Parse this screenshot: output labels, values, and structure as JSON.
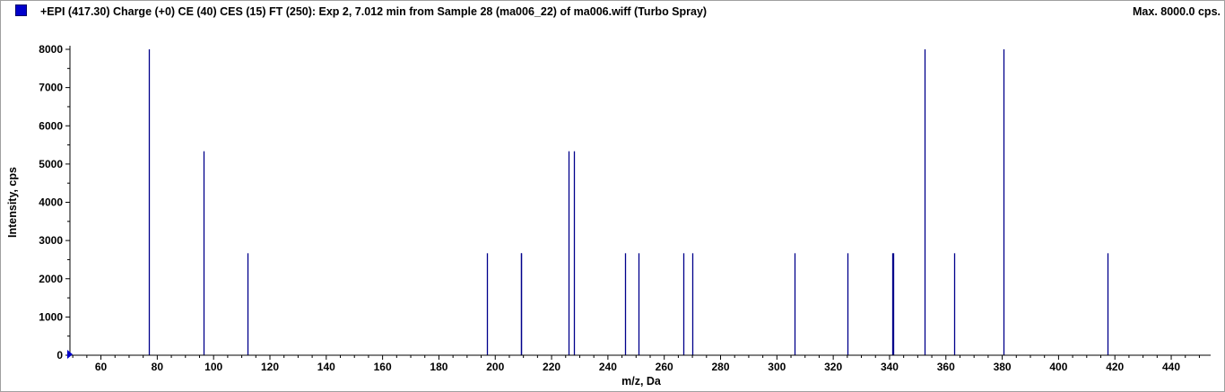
{
  "header": {
    "title": "+EPI (417.30) Charge (+0) CE (40) CES (15) FT (250): Exp 2, 7.012 min from Sample 28 (ma006_22) of ma006.wiff (Turbo Spray)",
    "max_label": "Max. 8000.0 cps."
  },
  "colors": {
    "series": "#00008b",
    "legend_swatch": "#0000cc",
    "axis": "#000000"
  },
  "chart_data": {
    "type": "bar",
    "title": "+EPI (417.30) Charge (+0) CE (40) CES (15) FT (250): Exp 2, 7.012 min from Sample 28 (ma006_22) of ma006.wiff (Turbo Spray)",
    "xlabel": "m/z, Da",
    "ylabel": "Intensity, cps",
    "xlim": [
      49,
      454
    ],
    "ylim": [
      0,
      8000
    ],
    "xticks": [
      60,
      80,
      100,
      120,
      140,
      160,
      180,
      200,
      220,
      240,
      260,
      280,
      300,
      320,
      340,
      360,
      380,
      400,
      420,
      440
    ],
    "yticks": [
      0,
      1000,
      2000,
      3000,
      4000,
      5000,
      6000,
      7000,
      8000
    ],
    "grid": false,
    "legend": "top-left",
    "series": [
      {
        "x": [
          77.0,
          96.3,
          112.0,
          197.0,
          209.0,
          209.3,
          226.0,
          228.0,
          246.0,
          251.0,
          266.7,
          270.0,
          306.3,
          325.0,
          340.9,
          341.2,
          352.3,
          363.0,
          380.3,
          417.3
        ],
        "values": [
          8000,
          5333,
          2667,
          2667,
          2667,
          2667,
          5333,
          5333,
          2667,
          2667,
          2667,
          2667,
          2667,
          2667,
          2667,
          2667,
          8000,
          2667,
          8000,
          2667
        ]
      }
    ]
  }
}
